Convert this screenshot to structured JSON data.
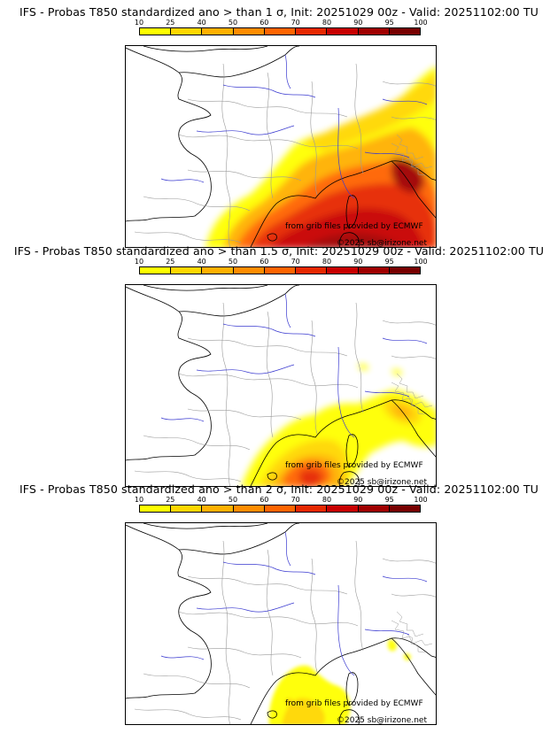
{
  "legend": {
    "ticks": [
      "10",
      "25",
      "40",
      "50",
      "60",
      "70",
      "80",
      "90",
      "95",
      "100"
    ],
    "colors": [
      "#ffff00",
      "#ffd700",
      "#ffb000",
      "#ff8c00",
      "#ff6400",
      "#e62800",
      "#c80000",
      "#a00000",
      "#780000"
    ]
  },
  "panels": [
    {
      "title": "IFS - Probas T850  standardized ano > than 1 σ, Init: 20251029 00z - Valid: 20251102:00 TU",
      "credit_source": "from grib files provided by ECMWF",
      "credit_copyright": "©2025 sb@irizone.net",
      "max_probability_level": "95"
    },
    {
      "title": "IFS - Probas T850  standardized ano > than 1.5 σ, Init: 20251029 00z - Valid: 20251102:00 TU",
      "credit_source": "from grib files provided by ECMWF",
      "credit_copyright": "©2025 sb@irizone.net",
      "max_probability_level": "70"
    },
    {
      "title": "IFS - Probas T850  standardized ano > than 2 σ, Init: 20251029 00z - Valid: 20251102:00 TU",
      "credit_source": "from grib files provided by ECMWF",
      "credit_copyright": "©2025 sb@irizone.net",
      "max_probability_level": "25"
    }
  ]
}
